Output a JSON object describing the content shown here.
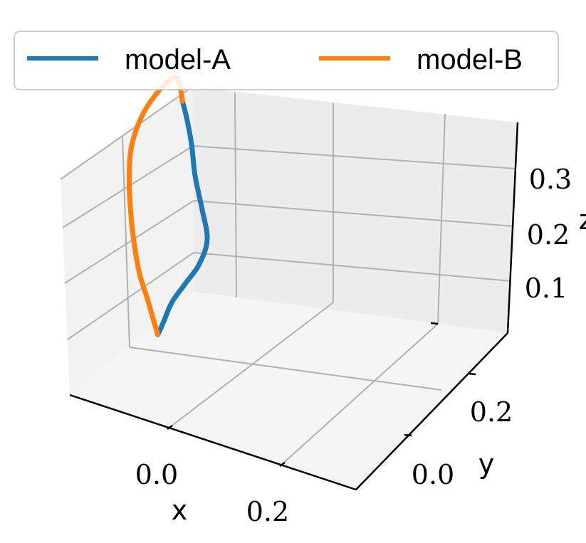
{
  "chart_data": {
    "type": "line",
    "projection": "3d",
    "title": "",
    "xlabel": "x",
    "ylabel": "y",
    "zlabel": "z",
    "xticks": [
      "0.0",
      "0.2"
    ],
    "yticks": [
      "0.0",
      "0.2"
    ],
    "zticks": [
      "0.1",
      "0.2",
      "0.3"
    ],
    "xlim": [
      -0.15,
      0.35
    ],
    "ylim": [
      -0.1,
      0.35
    ],
    "zlim": [
      0.0,
      0.37
    ],
    "grid": true,
    "legend": {
      "placement": "top",
      "columns": 2
    },
    "series": [
      {
        "name": "model-A",
        "color": "#1f77b4",
        "x": [
          0.05,
          0.08,
          0.12,
          0.17,
          0.22,
          0.26,
          0.27,
          0.27,
          0.27,
          0.265,
          0.26
        ],
        "y": [
          0.0,
          0.03,
          0.07,
          0.11,
          0.15,
          0.19,
          0.22,
          0.24,
          0.25,
          0.255,
          0.26
        ],
        "z": [
          0.02,
          0.03,
          0.045,
          0.06,
          0.075,
          0.1,
          0.14,
          0.19,
          0.24,
          0.28,
          0.31
        ]
      },
      {
        "name": "model-B",
        "color": "#ff7f0e",
        "x": [
          0.26,
          0.25,
          0.2,
          0.12,
          0.06,
          0.03,
          0.02,
          0.02,
          0.025,
          0.035,
          0.045,
          0.05
        ],
        "y": [
          0.26,
          0.26,
          0.22,
          0.15,
          0.09,
          0.05,
          0.03,
          0.02,
          0.012,
          0.006,
          0.002,
          0.0
        ],
        "z": [
          0.31,
          0.35,
          0.355,
          0.34,
          0.31,
          0.27,
          0.22,
          0.17,
          0.12,
          0.08,
          0.04,
          0.02
        ]
      }
    ]
  }
}
